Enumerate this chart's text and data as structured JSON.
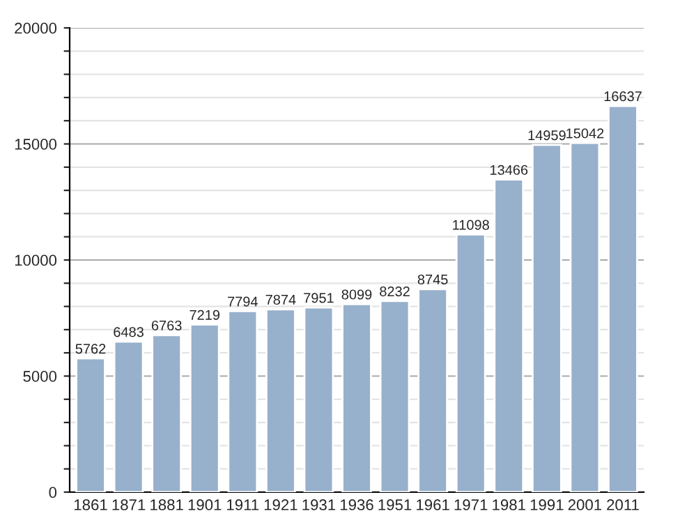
{
  "chart_data": {
    "type": "bar",
    "categories": [
      "1861",
      "1871",
      "1881",
      "1901",
      "1911",
      "1921",
      "1931",
      "1936",
      "1951",
      "1961",
      "1971",
      "1981",
      "1991",
      "2001",
      "2011"
    ],
    "values": [
      5762,
      6483,
      6763,
      7219,
      7794,
      7874,
      7951,
      8099,
      8232,
      8745,
      11098,
      13466,
      14959,
      15042,
      16637
    ],
    "color": "#97b0cc",
    "ylim": [
      0,
      20000
    ],
    "yticks": [
      0,
      {
        "value": 1000,
        "label": null
      },
      {
        "value": 2000,
        "label": null
      },
      {
        "value": 3000,
        "label": null
      },
      {
        "value": 4000,
        "label": null
      },
      5000,
      {
        "value": 6000,
        "label": null
      },
      {
        "value": 7000,
        "label": null
      },
      {
        "value": 8000,
        "label": null
      },
      {
        "value": 9000,
        "label": null
      },
      10000,
      {
        "value": 11000,
        "label": null
      },
      {
        "value": 12000,
        "label": null
      },
      {
        "value": 13000,
        "label": null
      },
      {
        "value": 14000,
        "label": null
      },
      15000,
      {
        "value": 16000,
        "label": null
      },
      {
        "value": 17000,
        "label": null
      },
      {
        "value": 18000,
        "label": null
      },
      {
        "value": 19000,
        "label": null
      },
      20000
    ],
    "grid": "y",
    "data_labels": true
  }
}
